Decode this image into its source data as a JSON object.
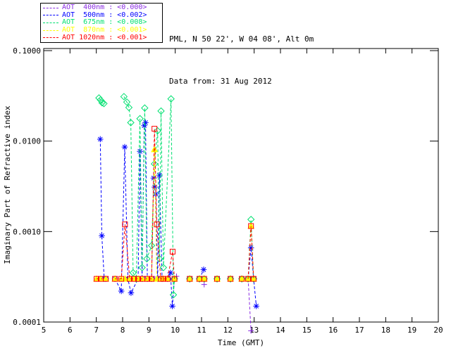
{
  "header": {
    "line1": "PML, N 50 22', W 04 08', Alt 0m",
    "line2": "Data from: 31 Aug 2012"
  },
  "legend": {
    "entries": [
      {
        "wavelength": "400nm",
        "label": "AOT  400nm : <0.000>",
        "color": "#8A2BE2"
      },
      {
        "wavelength": "500nm",
        "label": "AOT  500nm : <0.002>",
        "color": "#0000FF"
      },
      {
        "wavelength": "675nm",
        "label": "AOT  675nm : <0.008>",
        "color": "#00E070"
      },
      {
        "wavelength": "870nm",
        "label": "AOT  870nm : <0.001>",
        "color": "#FFFF00"
      },
      {
        "wavelength": "1020nm",
        "label": "AOT 1020nm : <0.001>",
        "color": "#FF0000"
      }
    ]
  },
  "chart_data": {
    "type": "line",
    "title": "",
    "xlabel": "Time (GMT)",
    "ylabel": "Imaginary Part of Refractive index",
    "x_range": [
      5,
      20
    ],
    "y_range": [
      0.0001,
      0.1
    ],
    "y_scale": "log",
    "grid": false,
    "legend_position": "top-left",
    "x_ticks": [
      {
        "v": 5,
        "label": "5"
      },
      {
        "v": 6,
        "label": "6"
      },
      {
        "v": 7,
        "label": "7"
      },
      {
        "v": 8,
        "label": "8"
      },
      {
        "v": 9,
        "label": "9"
      },
      {
        "v": 10,
        "label": "10"
      },
      {
        "v": 11,
        "label": "11"
      },
      {
        "v": 12,
        "label": "12"
      },
      {
        "v": 13,
        "label": "13"
      },
      {
        "v": 14,
        "label": "14"
      },
      {
        "v": 15,
        "label": "15"
      },
      {
        "v": 16,
        "label": "16"
      },
      {
        "v": 17,
        "label": "17"
      },
      {
        "v": 18,
        "label": "18"
      },
      {
        "v": 19,
        "label": "19"
      },
      {
        "v": 20,
        "label": "20"
      }
    ],
    "y_ticks": [
      {
        "v": 0.1,
        "label": "0.1000"
      },
      {
        "v": 0.01,
        "label": "0.0100"
      },
      {
        "v": 0.001,
        "label": "0.0010"
      },
      {
        "v": 0.0001,
        "label": "0.0001"
      }
    ],
    "series": [
      {
        "name": "AOT 400nm",
        "color": "#8A2BE2",
        "marker": "plus",
        "line": "dashed",
        "segments": [
          [
            [
              7.01,
              0.0003
            ],
            [
              7.17,
              0.0003
            ],
            [
              7.36,
              0.0003
            ]
          ],
          [
            [
              7.71,
              0.0003
            ],
            [
              7.95,
              0.0003
            ],
            [
              8.09,
              0.0003
            ],
            [
              8.27,
              0.0003
            ],
            [
              8.43,
              0.0003
            ],
            [
              8.59,
              0.0003
            ],
            [
              8.75,
              0.0003
            ],
            [
              8.94,
              0.0003
            ],
            [
              9.1,
              0.0003
            ],
            [
              9.21,
              0.0003
            ],
            [
              9.37,
              0.0003
            ],
            [
              9.55,
              0.0003
            ],
            [
              9.71,
              0.0003
            ],
            [
              9.97,
              0.0003
            ],
            [
              10.05,
              0.00032
            ]
          ],
          [
            [
              10.55,
              0.0003
            ]
          ],
          [
            [
              10.92,
              0.0003
            ]
          ],
          [
            [
              11.1,
              0.00026
            ]
          ],
          [
            [
              11.59,
              0.0003
            ]
          ],
          [
            [
              12.1,
              0.0003
            ]
          ],
          [
            [
              12.53,
              0.0003
            ]
          ],
          [
            [
              12.77,
              0.0003
            ],
            [
              12.88,
              8e-05
            ]
          ]
        ]
      },
      {
        "name": "AOT 500nm",
        "color": "#0000FF",
        "marker": "asterisk",
        "line": "dashed",
        "segments": [
          [
            [
              7.15,
              0.0105
            ],
            [
              7.21,
              0.0009
            ],
            [
              7.3,
              0.0003
            ],
            [
              7.36,
              0.0003
            ]
          ],
          [
            [
              7.71,
              0.0003
            ],
            [
              7.95,
              0.00022
            ],
            [
              8.08,
              0.0086
            ],
            [
              8.2,
              0.0003
            ],
            [
              8.32,
              0.00021
            ],
            [
              8.59,
              0.0003
            ],
            [
              8.66,
              0.0077
            ],
            [
              8.74,
              0.0003
            ],
            [
              8.82,
              0.0148
            ],
            [
              8.87,
              0.016
            ],
            [
              8.94,
              0.0003
            ],
            [
              9.1,
              0.0003
            ],
            [
              9.18,
              0.0039
            ],
            [
              9.22,
              0.0031
            ],
            [
              9.26,
              0.0026
            ],
            [
              9.33,
              0.0003
            ],
            [
              9.4,
              0.0042
            ],
            [
              9.5,
              0.0003
            ],
            [
              9.71,
              0.0003
            ],
            [
              9.82,
              0.00035
            ],
            [
              9.89,
              0.00015
            ],
            [
              9.97,
              0.0003
            ]
          ],
          [
            [
              10.55,
              0.0003
            ]
          ],
          [
            [
              10.92,
              0.0003
            ],
            [
              11.08,
              0.00038
            ]
          ],
          [
            [
              11.59,
              0.0003
            ]
          ],
          [
            [
              12.1,
              0.0003
            ]
          ],
          [
            [
              12.53,
              0.0003
            ]
          ],
          [
            [
              12.77,
              0.0003
            ],
            [
              12.88,
              0.00066
            ],
            [
              12.98,
              0.0003
            ],
            [
              13.08,
              0.00015
            ]
          ]
        ]
      },
      {
        "name": "AOT 675nm",
        "color": "#00E070",
        "marker": "diamond",
        "line": "dashed",
        "segments": [
          [
            [
              7.1,
              0.03
            ],
            [
              7.16,
              0.0285
            ],
            [
              7.22,
              0.0265
            ],
            [
              7.29,
              0.026
            ]
          ],
          [
            [
              8.05,
              0.031
            ],
            [
              8.16,
              0.027
            ],
            [
              8.24,
              0.0235
            ],
            [
              8.31,
              0.016
            ],
            [
              8.4,
              0.00035
            ],
            [
              8.52,
              0.0003
            ],
            [
              8.66,
              0.0177
            ],
            [
              8.74,
              0.0004
            ],
            [
              8.84,
              0.0232
            ],
            [
              8.92,
              0.0005
            ],
            [
              9.1,
              0.0007
            ],
            [
              9.21,
              0.0056
            ],
            [
              9.33,
              0.013
            ],
            [
              9.4,
              0.0005
            ],
            [
              9.46,
              0.0215
            ],
            [
              9.55,
              0.0004
            ],
            [
              9.84,
              0.0293
            ],
            [
              9.93,
              0.0002
            ],
            [
              9.97,
              0.0003
            ]
          ],
          [
            [
              10.55,
              0.0003
            ]
          ],
          [
            [
              10.92,
              0.0003
            ]
          ],
          [
            [
              11.1,
              0.0003
            ]
          ],
          [
            [
              11.59,
              0.0003
            ]
          ],
          [
            [
              12.1,
              0.0003
            ]
          ],
          [
            [
              12.53,
              0.0003
            ]
          ],
          [
            [
              12.77,
              0.0003
            ],
            [
              12.88,
              0.00136
            ],
            [
              12.98,
              0.0003
            ]
          ]
        ]
      },
      {
        "name": "AOT 870nm",
        "color": "#FFFF00",
        "marker": "triangle",
        "line": "dashed",
        "segments": [
          [
            [
              7.01,
              0.0003
            ],
            [
              7.17,
              0.0003
            ],
            [
              7.36,
              0.0003
            ]
          ],
          [
            [
              7.71,
              0.0003
            ],
            [
              7.95,
              0.0003
            ],
            [
              8.09,
              0.0003
            ],
            [
              8.27,
              0.0003
            ],
            [
              8.43,
              0.0003
            ],
            [
              8.59,
              0.0003
            ],
            [
              8.75,
              0.0003
            ],
            [
              8.94,
              0.0003
            ],
            [
              9.1,
              0.0003
            ],
            [
              9.21,
              0.0081
            ],
            [
              9.3,
              0.0003
            ],
            [
              9.45,
              0.0003
            ],
            [
              9.55,
              0.0003
            ],
            [
              9.71,
              0.0003
            ],
            [
              9.97,
              0.0003
            ]
          ],
          [
            [
              10.55,
              0.0003
            ]
          ],
          [
            [
              10.92,
              0.0003
            ]
          ],
          [
            [
              11.1,
              0.0003
            ]
          ],
          [
            [
              11.59,
              0.0003
            ]
          ],
          [
            [
              12.1,
              0.0003
            ]
          ],
          [
            [
              12.53,
              0.0003
            ]
          ],
          [
            [
              12.77,
              0.0003
            ],
            [
              12.88,
              0.00115
            ],
            [
              12.98,
              0.0003
            ]
          ]
        ]
      },
      {
        "name": "AOT 1020nm",
        "color": "#FF0000",
        "marker": "square",
        "line": "dashed",
        "segments": [
          [
            [
              7.01,
              0.0003
            ],
            [
              7.17,
              0.0003
            ],
            [
              7.36,
              0.0003
            ]
          ],
          [
            [
              7.71,
              0.0003
            ],
            [
              7.95,
              0.0003
            ],
            [
              8.09,
              0.0012
            ],
            [
              8.27,
              0.0003
            ],
            [
              8.43,
              0.0003
            ],
            [
              8.59,
              0.0003
            ],
            [
              8.75,
              0.0003
            ],
            [
              8.94,
              0.0003
            ],
            [
              9.1,
              0.0003
            ],
            [
              9.21,
              0.0137
            ],
            [
              9.3,
              0.0012
            ],
            [
              9.45,
              0.0003
            ],
            [
              9.55,
              0.0003
            ],
            [
              9.71,
              0.0003
            ],
            [
              9.9,
              0.0006
            ],
            [
              9.97,
              0.0003
            ]
          ],
          [
            [
              10.55,
              0.0003
            ]
          ],
          [
            [
              10.92,
              0.0003
            ]
          ],
          [
            [
              11.1,
              0.0003
            ]
          ],
          [
            [
              11.59,
              0.0003
            ]
          ],
          [
            [
              12.1,
              0.0003
            ]
          ],
          [
            [
              12.53,
              0.0003
            ]
          ],
          [
            [
              12.77,
              0.0003
            ],
            [
              12.88,
              0.00115
            ],
            [
              12.98,
              0.0003
            ]
          ]
        ]
      }
    ]
  }
}
